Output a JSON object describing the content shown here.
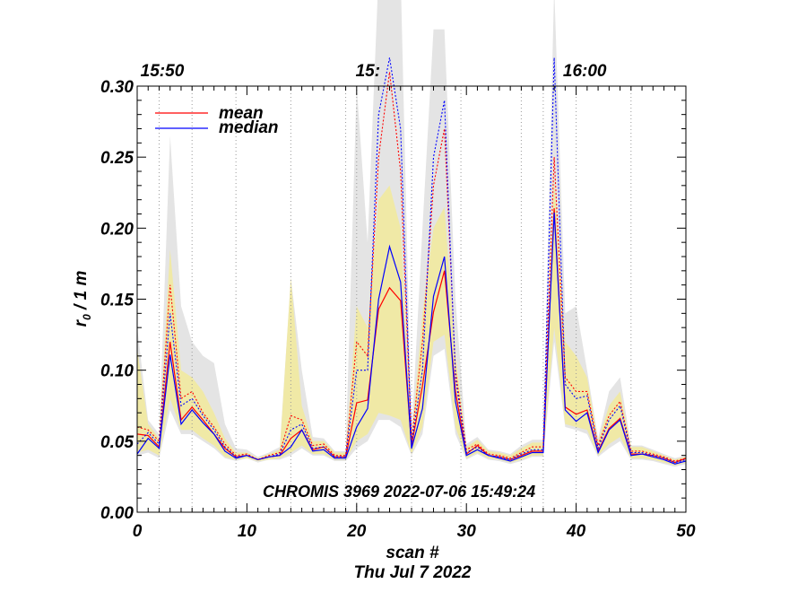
{
  "chart_data": {
    "type": "line",
    "title": "",
    "annotation": "CHROMIS 3969 2022-07-06 15:49:24",
    "xlabel": "scan #",
    "xlabel_date": "Thu Jul  7 2022",
    "ylabel_main": "r",
    "ylabel_sub": "0",
    "ylabel_rest": " / 1 m",
    "xlim": [
      0,
      50
    ],
    "ylim": [
      0,
      0.3
    ],
    "x_ticks": [
      0,
      10,
      20,
      30,
      40,
      50
    ],
    "x_tick_labels": [
      "0",
      "10",
      "20",
      "30",
      "40",
      "50"
    ],
    "y_ticks": [
      0,
      0.05,
      0.1,
      0.15,
      0.2,
      0.25,
      0.3
    ],
    "y_tick_labels": [
      "0.00",
      "0.05",
      "0.10",
      "0.15",
      "0.20",
      "0.25",
      "0.30"
    ],
    "top_time_labels": [
      {
        "x": 0.3,
        "label": "15:50"
      },
      {
        "x": 19.9,
        "label": "15:"
      },
      {
        "x": 38.8,
        "label": "16:00"
      }
    ],
    "vlines_x": [
      2,
      5,
      9,
      14,
      19,
      20,
      25,
      29.5,
      35,
      37,
      40,
      45
    ],
    "x": [
      0,
      1,
      2,
      3,
      4,
      5,
      6,
      7,
      8,
      9,
      10,
      11,
      12,
      13,
      14,
      15,
      16,
      17,
      18,
      19,
      20,
      21,
      22,
      23,
      24,
      25,
      26,
      27,
      28,
      29,
      30,
      31,
      32,
      33,
      34,
      35,
      36,
      37,
      38,
      39,
      40,
      41,
      42,
      43,
      44,
      45,
      46,
      47,
      48,
      49,
      50
    ],
    "series": [
      {
        "name": "mean",
        "color": "#ff0000",
        "style": "solid",
        "values": [
          0.055,
          0.054,
          0.046,
          0.12,
          0.065,
          0.074,
          0.065,
          0.055,
          0.045,
          0.039,
          0.04,
          0.037,
          0.039,
          0.04,
          0.052,
          0.058,
          0.044,
          0.046,
          0.039,
          0.039,
          0.077,
          0.079,
          0.143,
          0.158,
          0.149,
          0.047,
          0.089,
          0.141,
          0.17,
          0.085,
          0.041,
          0.047,
          0.04,
          0.039,
          0.037,
          0.04,
          0.043,
          0.043,
          0.214,
          0.074,
          0.069,
          0.072,
          0.043,
          0.059,
          0.066,
          0.041,
          0.041,
          0.04,
          0.038,
          0.035,
          0.038
        ]
      },
      {
        "name": "median",
        "color": "#0000ff",
        "style": "solid",
        "values": [
          0.041,
          0.052,
          0.045,
          0.111,
          0.062,
          0.072,
          0.063,
          0.055,
          0.043,
          0.038,
          0.04,
          0.037,
          0.039,
          0.04,
          0.046,
          0.058,
          0.043,
          0.044,
          0.038,
          0.038,
          0.06,
          0.073,
          0.15,
          0.187,
          0.162,
          0.045,
          0.073,
          0.152,
          0.18,
          0.078,
          0.04,
          0.044,
          0.04,
          0.038,
          0.036,
          0.039,
          0.042,
          0.042,
          0.211,
          0.072,
          0.064,
          0.07,
          0.042,
          0.058,
          0.065,
          0.04,
          0.041,
          0.039,
          0.037,
          0.034,
          0.036
        ]
      },
      {
        "name": "mean upper",
        "color": "#ff0000",
        "style": "dotted",
        "legend": false,
        "values": [
          0.06,
          0.058,
          0.05,
          0.16,
          0.08,
          0.085,
          0.07,
          0.06,
          0.048,
          0.04,
          0.041,
          0.037,
          0.04,
          0.042,
          0.068,
          0.065,
          0.047,
          0.048,
          0.04,
          0.04,
          0.12,
          0.11,
          0.25,
          0.31,
          0.24,
          0.05,
          0.12,
          0.23,
          0.27,
          0.1,
          0.044,
          0.048,
          0.041,
          0.04,
          0.038,
          0.042,
          0.046,
          0.046,
          0.25,
          0.095,
          0.085,
          0.085,
          0.047,
          0.068,
          0.078,
          0.043,
          0.043,
          0.041,
          0.039,
          0.036,
          0.038
        ]
      },
      {
        "name": "median upper",
        "color": "#0000ff",
        "style": "dotted",
        "legend": false,
        "values": [
          0.048,
          0.056,
          0.048,
          0.14,
          0.075,
          0.08,
          0.068,
          0.058,
          0.046,
          0.039,
          0.04,
          0.037,
          0.039,
          0.041,
          0.058,
          0.062,
          0.045,
          0.046,
          0.039,
          0.039,
          0.1,
          0.1,
          0.28,
          0.32,
          0.27,
          0.048,
          0.1,
          0.25,
          0.29,
          0.095,
          0.042,
          0.046,
          0.04,
          0.039,
          0.037,
          0.041,
          0.044,
          0.044,
          0.32,
          0.09,
          0.08,
          0.082,
          0.045,
          0.065,
          0.075,
          0.042,
          0.042,
          0.04,
          0.038,
          0.035,
          0.037
        ]
      }
    ],
    "bands": [
      {
        "name": "outer range",
        "color": "#e4e4e4",
        "upper": [
          0.13,
          0.065,
          0.055,
          0.265,
          0.145,
          0.12,
          0.11,
          0.105,
          0.062,
          0.045,
          0.044,
          0.039,
          0.042,
          0.046,
          0.165,
          0.1,
          0.053,
          0.052,
          0.043,
          0.043,
          0.3,
          0.19,
          0.38,
          0.42,
          0.38,
          0.055,
          0.2,
          0.34,
          0.34,
          0.15,
          0.048,
          0.053,
          0.044,
          0.043,
          0.041,
          0.047,
          0.051,
          0.051,
          0.37,
          0.14,
          0.145,
          0.1,
          0.052,
          0.085,
          0.095,
          0.047,
          0.047,
          0.044,
          0.041,
          0.038,
          0.04
        ],
        "lower": [
          0.04,
          0.042,
          0.038,
          0.072,
          0.055,
          0.055,
          0.05,
          0.045,
          0.038,
          0.036,
          0.038,
          0.035,
          0.037,
          0.037,
          0.04,
          0.045,
          0.04,
          0.04,
          0.036,
          0.036,
          0.045,
          0.05,
          0.065,
          0.065,
          0.06,
          0.04,
          0.055,
          0.11,
          0.115,
          0.055,
          0.037,
          0.041,
          0.037,
          0.036,
          0.034,
          0.036,
          0.039,
          0.039,
          0.12,
          0.06,
          0.058,
          0.055,
          0.039,
          0.045,
          0.05,
          0.037,
          0.037,
          0.036,
          0.034,
          0.032,
          0.034
        ]
      },
      {
        "name": "inner range",
        "color": "#f0e9a6",
        "upper": [
          0.115,
          0.062,
          0.052,
          0.185,
          0.1,
          0.095,
          0.085,
          0.07,
          0.052,
          0.042,
          0.042,
          0.038,
          0.041,
          0.044,
          0.165,
          0.075,
          0.05,
          0.05,
          0.042,
          0.042,
          0.145,
          0.13,
          0.22,
          0.23,
          0.2,
          0.052,
          0.14,
          0.2,
          0.215,
          0.11,
          0.046,
          0.051,
          0.043,
          0.042,
          0.04,
          0.045,
          0.049,
          0.049,
          0.235,
          0.12,
          0.11,
          0.095,
          0.05,
          0.075,
          0.085,
          0.046,
          0.046,
          0.043,
          0.04,
          0.037,
          0.039
        ],
        "lower": [
          0.042,
          0.044,
          0.04,
          0.08,
          0.058,
          0.058,
          0.052,
          0.047,
          0.039,
          0.037,
          0.038,
          0.036,
          0.037,
          0.038,
          0.042,
          0.047,
          0.041,
          0.041,
          0.037,
          0.037,
          0.05,
          0.055,
          0.07,
          0.068,
          0.065,
          0.041,
          0.06,
          0.12,
          0.125,
          0.06,
          0.038,
          0.042,
          0.038,
          0.037,
          0.035,
          0.037,
          0.04,
          0.04,
          0.13,
          0.062,
          0.06,
          0.058,
          0.04,
          0.048,
          0.053,
          0.038,
          0.038,
          0.037,
          0.035,
          0.033,
          0.035
        ]
      }
    ],
    "legend_position": "top-left",
    "grid": false
  }
}
